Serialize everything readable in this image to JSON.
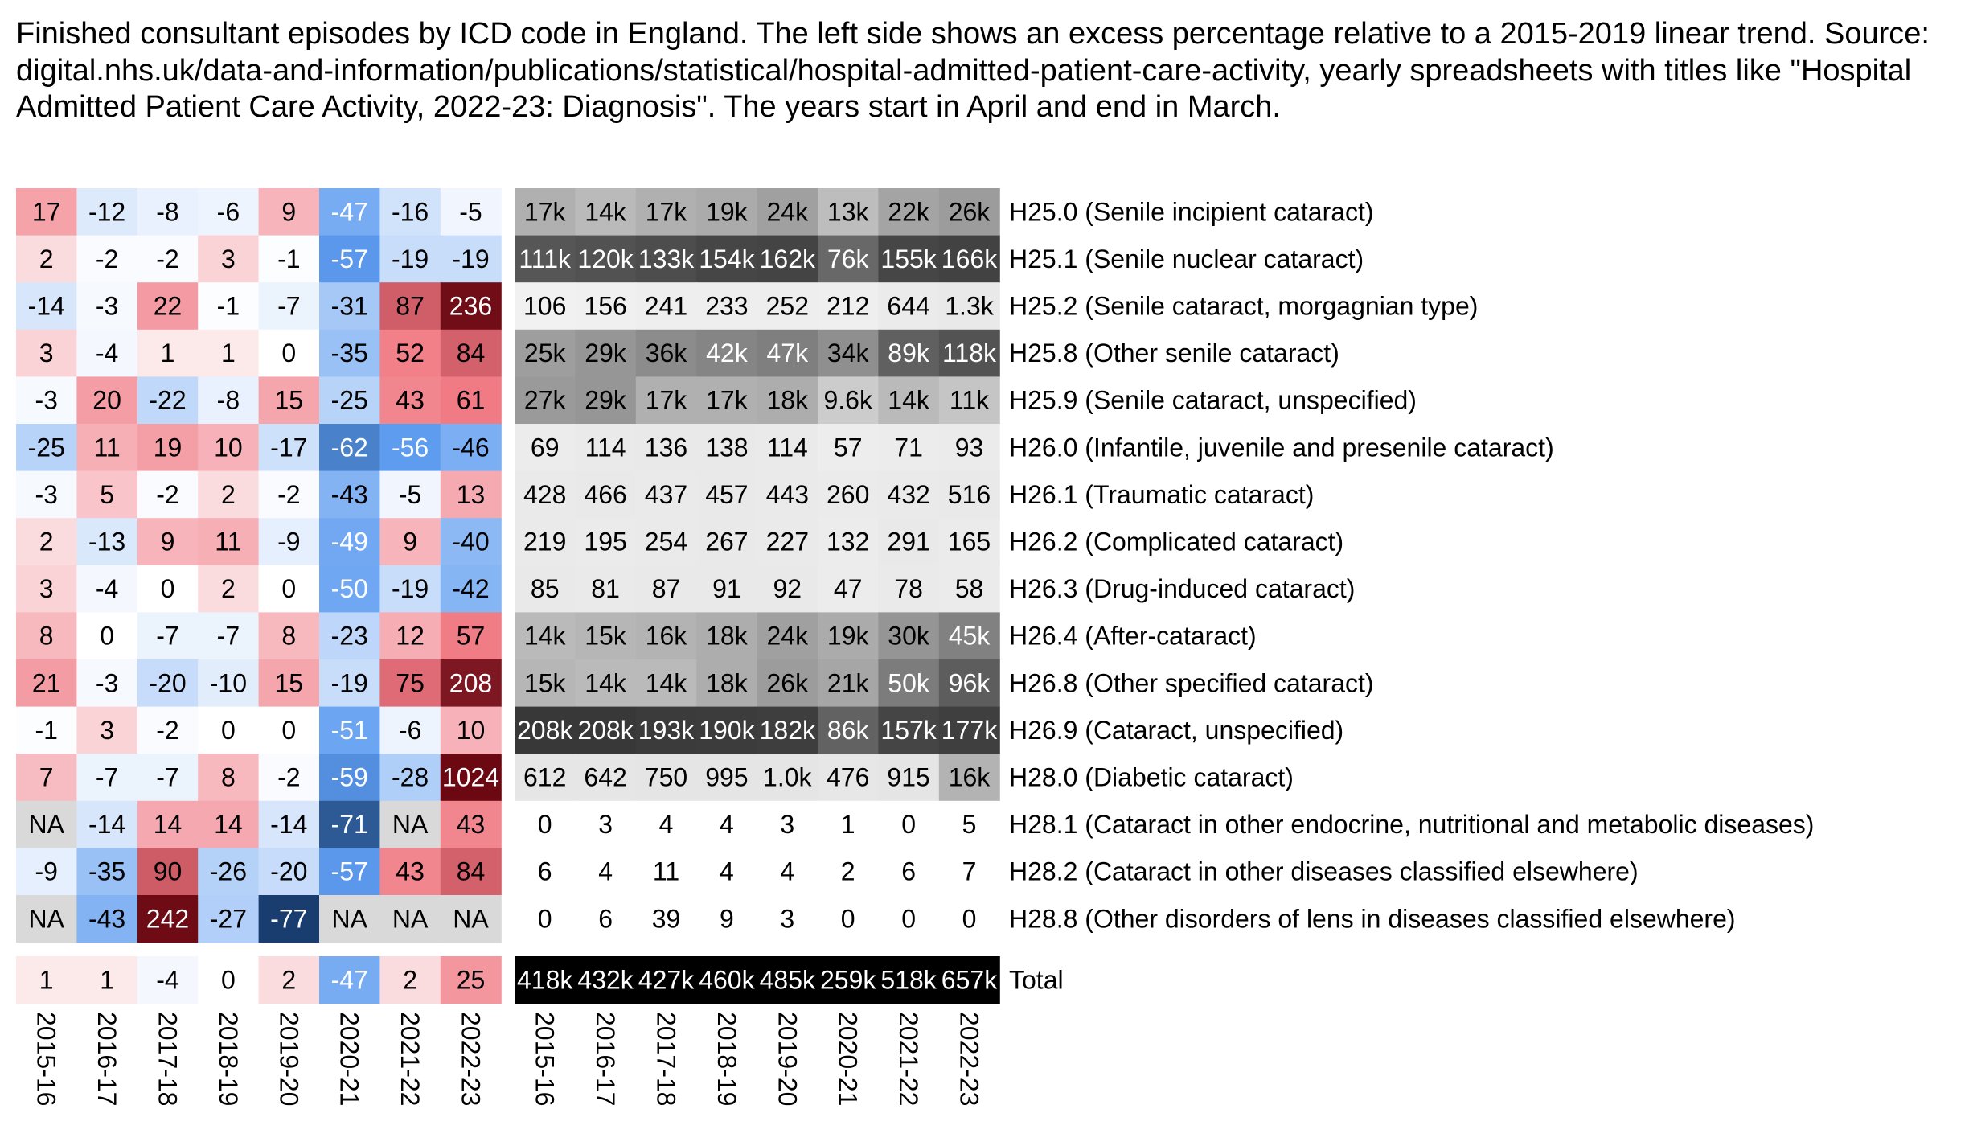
{
  "chart_data": {
    "type": "heatmap",
    "title": "Finished consultant episodes by ICD code in England. The left side shows an excess percentage relative to a 2015-2019 linear trend. Source: digital.nhs.uk/data-and-information/publications/statistical/hospital-admitted-patient-care-activity, yearly spreadsheets with titles like \"Hospital Admitted Patient Care Activity, 2022-23: Diagnosis\". The years start in April and end in March.",
    "years": [
      "2015-16",
      "2016-17",
      "2017-18",
      "2018-19",
      "2019-20",
      "2020-21",
      "2021-22",
      "2022-23"
    ],
    "rows": [
      {
        "label": "H25.0 (Senile incipient cataract)",
        "excess": [
          17,
          -12,
          -8,
          -6,
          9,
          -47,
          -16,
          -5
        ],
        "counts": [
          "17k",
          "14k",
          "17k",
          "19k",
          "24k",
          "13k",
          "22k",
          "26k"
        ],
        "count_values": [
          17000,
          14000,
          17000,
          19000,
          24000,
          13000,
          22000,
          26000
        ]
      },
      {
        "label": "H25.1 (Senile nuclear cataract)",
        "excess": [
          2,
          -2,
          -2,
          3,
          -1,
          -57,
          -19,
          -19
        ],
        "counts": [
          "111k",
          "120k",
          "133k",
          "154k",
          "162k",
          "76k",
          "155k",
          "166k"
        ],
        "count_values": [
          111000,
          120000,
          133000,
          154000,
          162000,
          76000,
          155000,
          166000
        ]
      },
      {
        "label": "H25.2 (Senile cataract, morgagnian type)",
        "excess": [
          -14,
          -3,
          22,
          -1,
          -7,
          -31,
          87,
          236
        ],
        "counts": [
          "106",
          "156",
          "241",
          "233",
          "252",
          "212",
          "644",
          "1.3k"
        ],
        "count_values": [
          106,
          156,
          241,
          233,
          252,
          212,
          644,
          1300
        ]
      },
      {
        "label": "H25.8 (Other senile cataract)",
        "excess": [
          3,
          -4,
          1,
          1,
          0,
          -35,
          52,
          84
        ],
        "counts": [
          "25k",
          "29k",
          "36k",
          "42k",
          "47k",
          "34k",
          "89k",
          "118k"
        ],
        "count_values": [
          25000,
          29000,
          36000,
          42000,
          47000,
          34000,
          89000,
          118000
        ]
      },
      {
        "label": "H25.9 (Senile cataract, unspecified)",
        "excess": [
          -3,
          20,
          -22,
          -8,
          15,
          -25,
          43,
          61
        ],
        "counts": [
          "27k",
          "29k",
          "17k",
          "17k",
          "18k",
          "9.6k",
          "14k",
          "11k"
        ],
        "count_values": [
          27000,
          29000,
          17000,
          17000,
          18000,
          9600,
          14000,
          11000
        ]
      },
      {
        "label": "H26.0 (Infantile, juvenile and presenile cataract)",
        "excess": [
          -25,
          11,
          19,
          10,
          -17,
          -62,
          -56,
          -46
        ],
        "counts": [
          "69",
          "114",
          "136",
          "138",
          "114",
          "57",
          "71",
          "93"
        ],
        "count_values": [
          69,
          114,
          136,
          138,
          114,
          57,
          71,
          93
        ]
      },
      {
        "label": "H26.1 (Traumatic cataract)",
        "excess": [
          -3,
          5,
          -2,
          2,
          -2,
          -43,
          -5,
          13
        ],
        "counts": [
          "428",
          "466",
          "437",
          "457",
          "443",
          "260",
          "432",
          "516"
        ],
        "count_values": [
          428,
          466,
          437,
          457,
          443,
          260,
          432,
          516
        ]
      },
      {
        "label": "H26.2 (Complicated cataract)",
        "excess": [
          2,
          -13,
          9,
          11,
          -9,
          -49,
          9,
          -40
        ],
        "counts": [
          "219",
          "195",
          "254",
          "267",
          "227",
          "132",
          "291",
          "165"
        ],
        "count_values": [
          219,
          195,
          254,
          267,
          227,
          132,
          291,
          165
        ]
      },
      {
        "label": "H26.3 (Drug-induced cataract)",
        "excess": [
          3,
          -4,
          0,
          2,
          0,
          -50,
          -19,
          -42
        ],
        "counts": [
          "85",
          "81",
          "87",
          "91",
          "92",
          "47",
          "78",
          "58"
        ],
        "count_values": [
          85,
          81,
          87,
          91,
          92,
          47,
          78,
          58
        ]
      },
      {
        "label": "H26.4 (After-cataract)",
        "excess": [
          8,
          0,
          -7,
          -7,
          8,
          -23,
          12,
          57
        ],
        "counts": [
          "14k",
          "15k",
          "16k",
          "18k",
          "24k",
          "19k",
          "30k",
          "45k"
        ],
        "count_values": [
          14000,
          15000,
          16000,
          18000,
          24000,
          19000,
          30000,
          45000
        ]
      },
      {
        "label": "H26.8 (Other specified cataract)",
        "excess": [
          21,
          -3,
          -20,
          -10,
          15,
          -19,
          75,
          208
        ],
        "counts": [
          "15k",
          "14k",
          "14k",
          "18k",
          "26k",
          "21k",
          "50k",
          "96k"
        ],
        "count_values": [
          15000,
          14000,
          14000,
          18000,
          26000,
          21000,
          50000,
          96000
        ]
      },
      {
        "label": "H26.9 (Cataract, unspecified)",
        "excess": [
          -1,
          3,
          -2,
          0,
          0,
          -51,
          -6,
          10
        ],
        "counts": [
          "208k",
          "208k",
          "193k",
          "190k",
          "182k",
          "86k",
          "157k",
          "177k"
        ],
        "count_values": [
          208000,
          208000,
          193000,
          190000,
          182000,
          86000,
          157000,
          177000
        ]
      },
      {
        "label": "H28.0 (Diabetic cataract)",
        "excess": [
          7,
          -7,
          -7,
          8,
          -2,
          -59,
          -28,
          1024
        ],
        "counts": [
          "612",
          "642",
          "750",
          "995",
          "1.0k",
          "476",
          "915",
          "16k"
        ],
        "count_values": [
          612,
          642,
          750,
          995,
          1000,
          476,
          915,
          16000
        ]
      },
      {
        "label": "H28.1 (Cataract in other endocrine, nutritional and metabolic diseases)",
        "excess": [
          null,
          -14,
          14,
          14,
          -14,
          -71,
          null,
          43
        ],
        "counts": [
          "0",
          "3",
          "4",
          "4",
          "3",
          "1",
          "0",
          "5"
        ],
        "count_values": [
          0,
          3,
          4,
          4,
          3,
          1,
          0,
          5
        ]
      },
      {
        "label": "H28.2 (Cataract in other diseases classified elsewhere)",
        "excess": [
          -9,
          -35,
          90,
          -26,
          -20,
          -57,
          43,
          84
        ],
        "counts": [
          "6",
          "4",
          "11",
          "4",
          "4",
          "2",
          "6",
          "7"
        ],
        "count_values": [
          6,
          4,
          11,
          4,
          4,
          2,
          6,
          7
        ]
      },
      {
        "label": "H28.8 (Other disorders of lens in diseases classified elsewhere)",
        "excess": [
          null,
          -43,
          242,
          -27,
          -77,
          null,
          null,
          null
        ],
        "counts": [
          "0",
          "6",
          "39",
          "9",
          "3",
          "0",
          "0",
          "0"
        ],
        "count_values": [
          0,
          6,
          39,
          9,
          3,
          0,
          0,
          0
        ]
      }
    ],
    "total": {
      "label": "Total",
      "excess": [
        1,
        1,
        -4,
        0,
        2,
        -47,
        2,
        25
      ],
      "counts": [
        "418k",
        "432k",
        "427k",
        "460k",
        "485k",
        "259k",
        "518k",
        "657k"
      ],
      "count_values": [
        418000,
        432000,
        427000,
        460000,
        485000,
        259000,
        518000,
        657000
      ]
    },
    "na_text": "NA",
    "colors": {
      "negative_max": "#10305e",
      "negative_mid": "#5e9cf0",
      "neutral": "#ffffff",
      "positive_mid": "#f07a84",
      "positive_max": "#6c0812",
      "na": "#d9d9d9",
      "count_dark": "#000000",
      "count_light": "#ffffff"
    }
  }
}
